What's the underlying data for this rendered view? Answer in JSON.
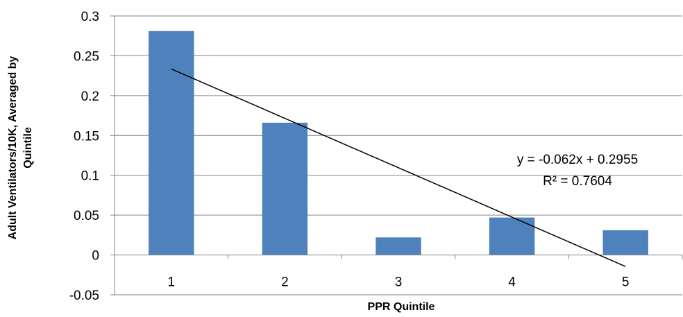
{
  "chart_data": {
    "type": "bar",
    "title": "",
    "xlabel": "PPR Quintile",
    "ylabel_lines": [
      "Adult Ventilators/10K, Averaged by",
      "Quintile"
    ],
    "categories": [
      "1",
      "2",
      "3",
      "4",
      "5"
    ],
    "series": [
      {
        "values": [
          0.281,
          0.166,
          0.022,
          0.047,
          0.031
        ],
        "color": "#4F81BD"
      }
    ],
    "ylim": [
      -0.05,
      0.3
    ],
    "yticks": [
      0.3,
      0.25,
      0.2,
      0.15,
      0.1,
      0.05,
      0,
      -0.05
    ],
    "ytick_labels": [
      "0.3",
      "0.25",
      "0.2",
      "0.15",
      "0.1",
      "0.05",
      "0",
      "-0.05"
    ],
    "grid": true,
    "trendline": {
      "type": "linear",
      "slope": -0.062,
      "intercept": 0.2955,
      "equation": "y = -0.062x + 0.2955",
      "r_squared": "R² = 0.7604"
    }
  }
}
